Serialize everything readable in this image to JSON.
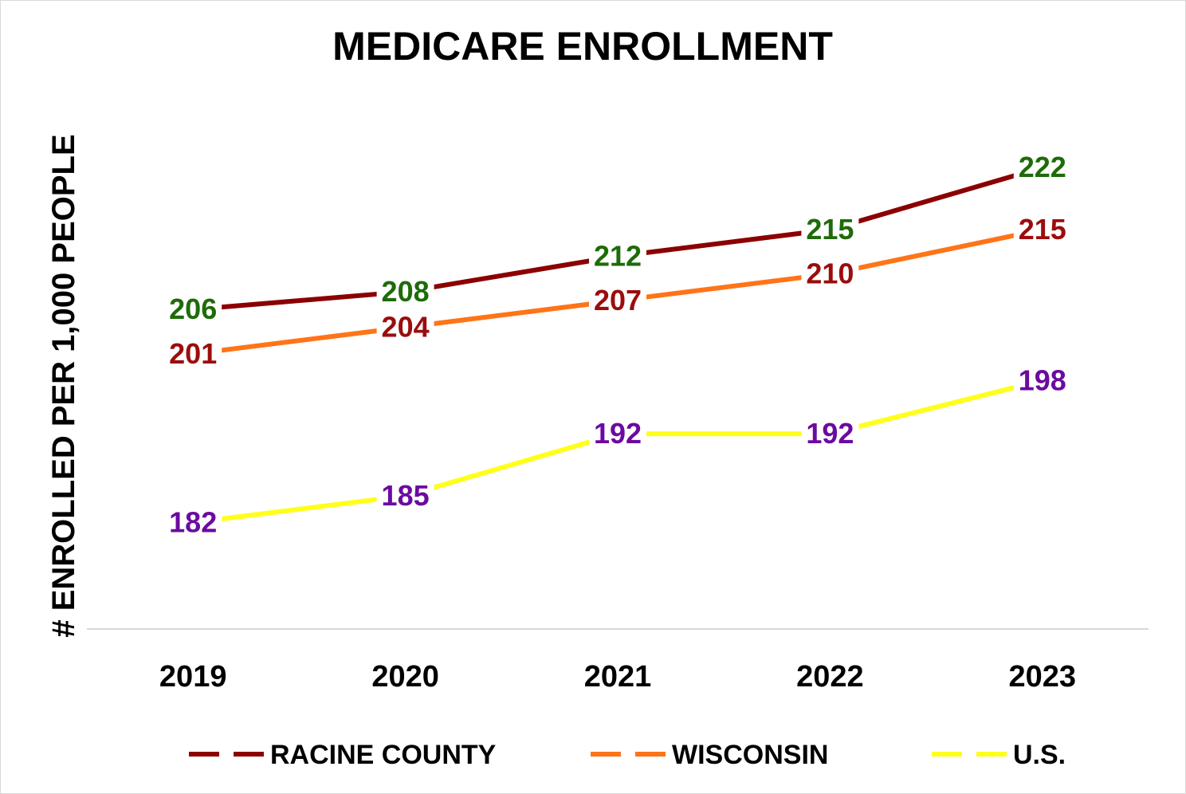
{
  "chart_data": {
    "type": "line",
    "title": "MEDICARE ENROLLMENT",
    "ylabel": "# ENROLLED PER 1,000 PEOPLE",
    "xlabel": "",
    "categories": [
      "2019",
      "2020",
      "2021",
      "2022",
      "2023"
    ],
    "ylim": [
      170,
      230
    ],
    "grid": false,
    "legend_position": "bottom",
    "series": [
      {
        "name": "RACINE COUNTY",
        "values": [
          206,
          208,
          212,
          215,
          222
        ],
        "line_color": "#8B0000",
        "label_color": "#1E6B0A"
      },
      {
        "name": "WISCONSIN",
        "values": [
          201,
          204,
          207,
          210,
          215
        ],
        "line_color": "#FF7418",
        "label_color": "#9B0D0D"
      },
      {
        "name": "U.S.",
        "values": [
          182,
          185,
          192,
          192,
          198
        ],
        "line_color": "#FFFF1A",
        "label_color": "#6B0AA0"
      }
    ]
  }
}
